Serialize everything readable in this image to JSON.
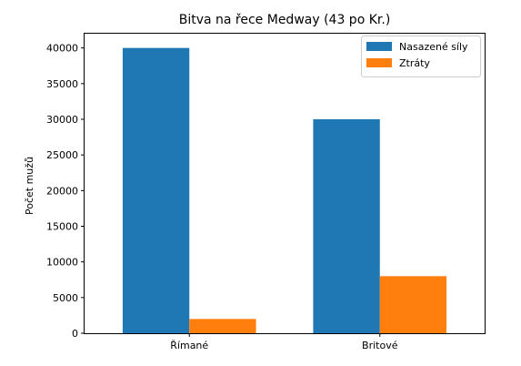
{
  "chart_data": {
    "type": "bar",
    "title": "Bitva na řece Medway (43 po Kr.)",
    "xlabel": "",
    "ylabel": "Počet mužů",
    "categories": [
      "Římané",
      "Britové"
    ],
    "series": [
      {
        "name": "Nasazené síly",
        "values": [
          40000,
          30000
        ],
        "color": "#1f77b4"
      },
      {
        "name": "Ztráty",
        "values": [
          2000,
          8000
        ],
        "color": "#ff7f0e"
      }
    ],
    "ylim": [
      0,
      42000
    ],
    "yticks": [
      0,
      5000,
      10000,
      15000,
      20000,
      25000,
      30000,
      35000,
      40000
    ],
    "legend": "top-right",
    "grid": false
  }
}
